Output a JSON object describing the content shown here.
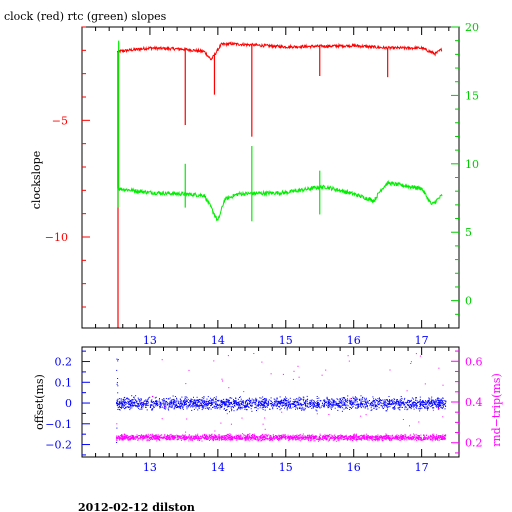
{
  "title": "clock (red) rtc (green) slopes",
  "footer": "2012-02-12 dilston",
  "colors": {
    "clock": "#ff0000",
    "rtc": "#00ee00",
    "offset": "#0000ff",
    "rndtrip": "#ff00ff",
    "frame": "#000000"
  },
  "chart_data": [
    {
      "type": "line",
      "title": "clock (red) rtc (green) slopes",
      "ylabel": "clockslope",
      "y2label": "",
      "xlim": [
        12.0,
        17.55
      ],
      "ylim": [
        -13.9,
        -1.0
      ],
      "y2lim": [
        -2.0,
        20.0
      ],
      "x_ticks": [
        13,
        14,
        15,
        16,
        17
      ],
      "y_ticks": [
        -5,
        -10
      ],
      "y_tick_labels": [
        "−5",
        "−10"
      ],
      "y2_ticks": [
        0,
        5,
        10,
        15,
        20
      ],
      "y2_tick_labels": [
        "0",
        "5",
        "10",
        "15",
        "20"
      ],
      "series": [
        {
          "name": "clock",
          "axis": "left",
          "color": "#ff0000",
          "base": [
            [
              12.52,
              -2.05
            ],
            [
              13.0,
              -1.9
            ],
            [
              13.5,
              -1.95
            ],
            [
              13.8,
              -2.05
            ],
            [
              13.9,
              -2.4
            ],
            [
              13.95,
              -2.2
            ],
            [
              14.05,
              -1.75
            ],
            [
              14.2,
              -1.72
            ],
            [
              15.0,
              -1.85
            ],
            [
              16.0,
              -1.8
            ],
            [
              16.5,
              -1.9
            ],
            [
              17.0,
              -1.9
            ],
            [
              17.2,
              -2.15
            ],
            [
              17.3,
              -1.95
            ]
          ],
          "spikes": [
            [
              12.53,
              -13.9
            ],
            [
              13.52,
              -5.2
            ],
            [
              13.95,
              -3.9
            ],
            [
              14.5,
              -5.7
            ],
            [
              15.5,
              -3.1
            ],
            [
              16.5,
              -3.15
            ]
          ]
        },
        {
          "name": "rtc",
          "axis": "right",
          "color": "#00ee00",
          "base": [
            [
              12.52,
              8.2
            ],
            [
              13.0,
              7.9
            ],
            [
              13.5,
              7.8
            ],
            [
              13.8,
              7.7
            ],
            [
              13.9,
              6.8
            ],
            [
              14.0,
              5.8
            ],
            [
              14.1,
              7.4
            ],
            [
              14.3,
              7.8
            ],
            [
              15.0,
              7.9
            ],
            [
              15.5,
              8.3
            ],
            [
              15.6,
              8.3
            ],
            [
              16.0,
              7.8
            ],
            [
              16.3,
              7.3
            ],
            [
              16.4,
              8.1
            ],
            [
              16.5,
              8.6
            ],
            [
              17.0,
              8.2
            ],
            [
              17.15,
              7.0
            ],
            [
              17.3,
              7.7
            ]
          ],
          "spikes": [
            [
              12.53,
              6.8
            ],
            [
              12.54,
              19.0
            ],
            [
              13.52,
              6.8
            ],
            [
              13.52,
              10.0
            ],
            [
              14.5,
              5.8
            ],
            [
              14.5,
              11.3
            ],
            [
              15.5,
              6.3
            ],
            [
              15.5,
              9.5
            ]
          ]
        }
      ]
    },
    {
      "type": "scatter",
      "ylabel": "offset(ms)",
      "y2label": "rnd−trip(ms)",
      "xlim": [
        12.0,
        17.55
      ],
      "ylim": [
        -0.26,
        0.27
      ],
      "y2lim": [
        0.13,
        0.67
      ],
      "x_ticks": [
        13,
        14,
        15,
        16,
        17
      ],
      "y_ticks": [
        -0.2,
        -0.1,
        0,
        0.1,
        0.2
      ],
      "y_tick_labels": [
        "−0.2",
        "−0.1",
        "0",
        "0.1",
        "0.2"
      ],
      "y2_ticks": [
        0.2,
        0.4,
        0.6
      ],
      "y2_tick_labels": [
        "0.2",
        "0.4",
        "0.6"
      ],
      "series": [
        {
          "name": "offset",
          "axis": "left",
          "color": "#0000ff",
          "x_range": [
            12.5,
            17.35
          ],
          "center": 0.0,
          "spread": 0.028
        },
        {
          "name": "rnd-trip",
          "axis": "right",
          "color": "#ff00ff",
          "x_range": [
            12.5,
            17.35
          ],
          "center": 0.228,
          "spread": 0.014,
          "outliers_above": [
            0.25,
            0.65
          ]
        }
      ]
    }
  ]
}
